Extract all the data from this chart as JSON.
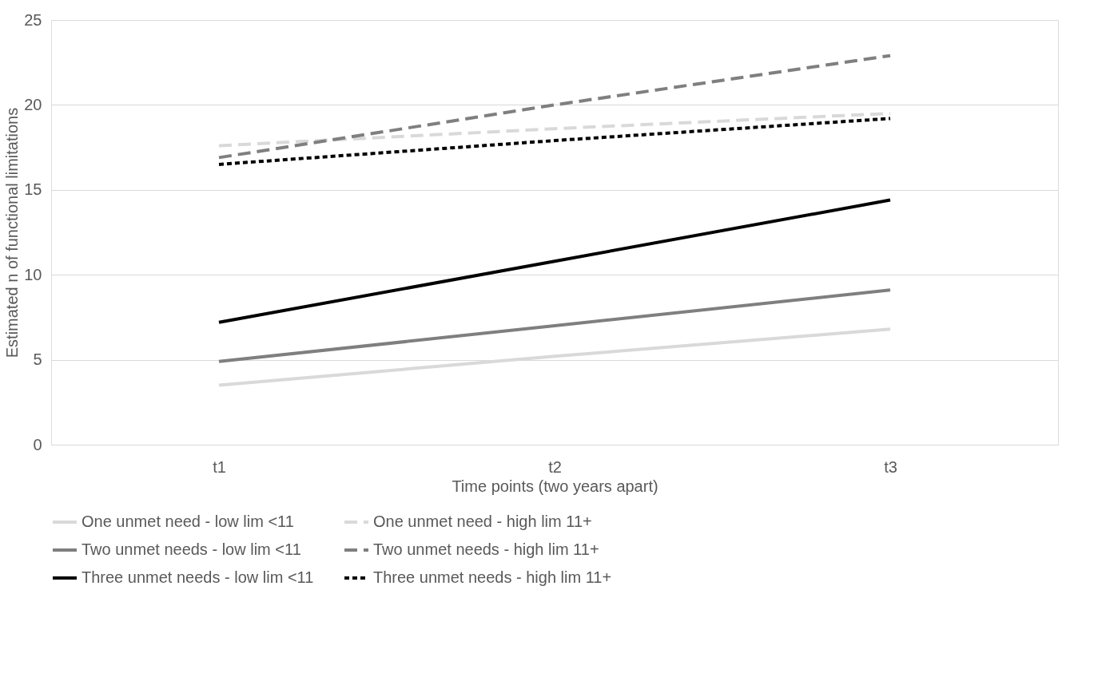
{
  "chart_data": {
    "type": "line",
    "xlabel": "Time points (two years apart)",
    "ylabel": "Estimated n of functional limitations",
    "categories": [
      "t1",
      "t2",
      "t3"
    ],
    "series": [
      {
        "name": "One unmet need - low lim <11",
        "color": "#d9d9d9",
        "line_style": "solid",
        "values": [
          3.5,
          5.2,
          6.8
        ]
      },
      {
        "name": "One unmet need - high lim 11+",
        "color": "#d9d9d9",
        "line_style": "dashed",
        "values": [
          17.6,
          18.6,
          19.5
        ]
      },
      {
        "name": "Two unmet needs - low lim <11",
        "color": "#7f7f7f",
        "line_style": "solid",
        "values": [
          4.9,
          7.0,
          9.1
        ]
      },
      {
        "name": "Two unmet needs - high lim 11+",
        "color": "#7f7f7f",
        "line_style": "dashed",
        "values": [
          16.9,
          20.0,
          22.9
        ]
      },
      {
        "name": "Three unmet needs - low lim <11",
        "color": "#000000",
        "line_style": "solid",
        "values": [
          7.2,
          10.8,
          14.4
        ]
      },
      {
        "name": "Three unmet needs - high lim 11+",
        "color": "#000000",
        "line_style": "dotted",
        "values": [
          16.5,
          17.9,
          19.2
        ]
      }
    ],
    "ylim": [
      0,
      25
    ],
    "yticks": [
      0,
      5,
      10,
      15,
      20,
      25
    ],
    "grid": "y",
    "legend": "bottom",
    "marker": "none"
  }
}
